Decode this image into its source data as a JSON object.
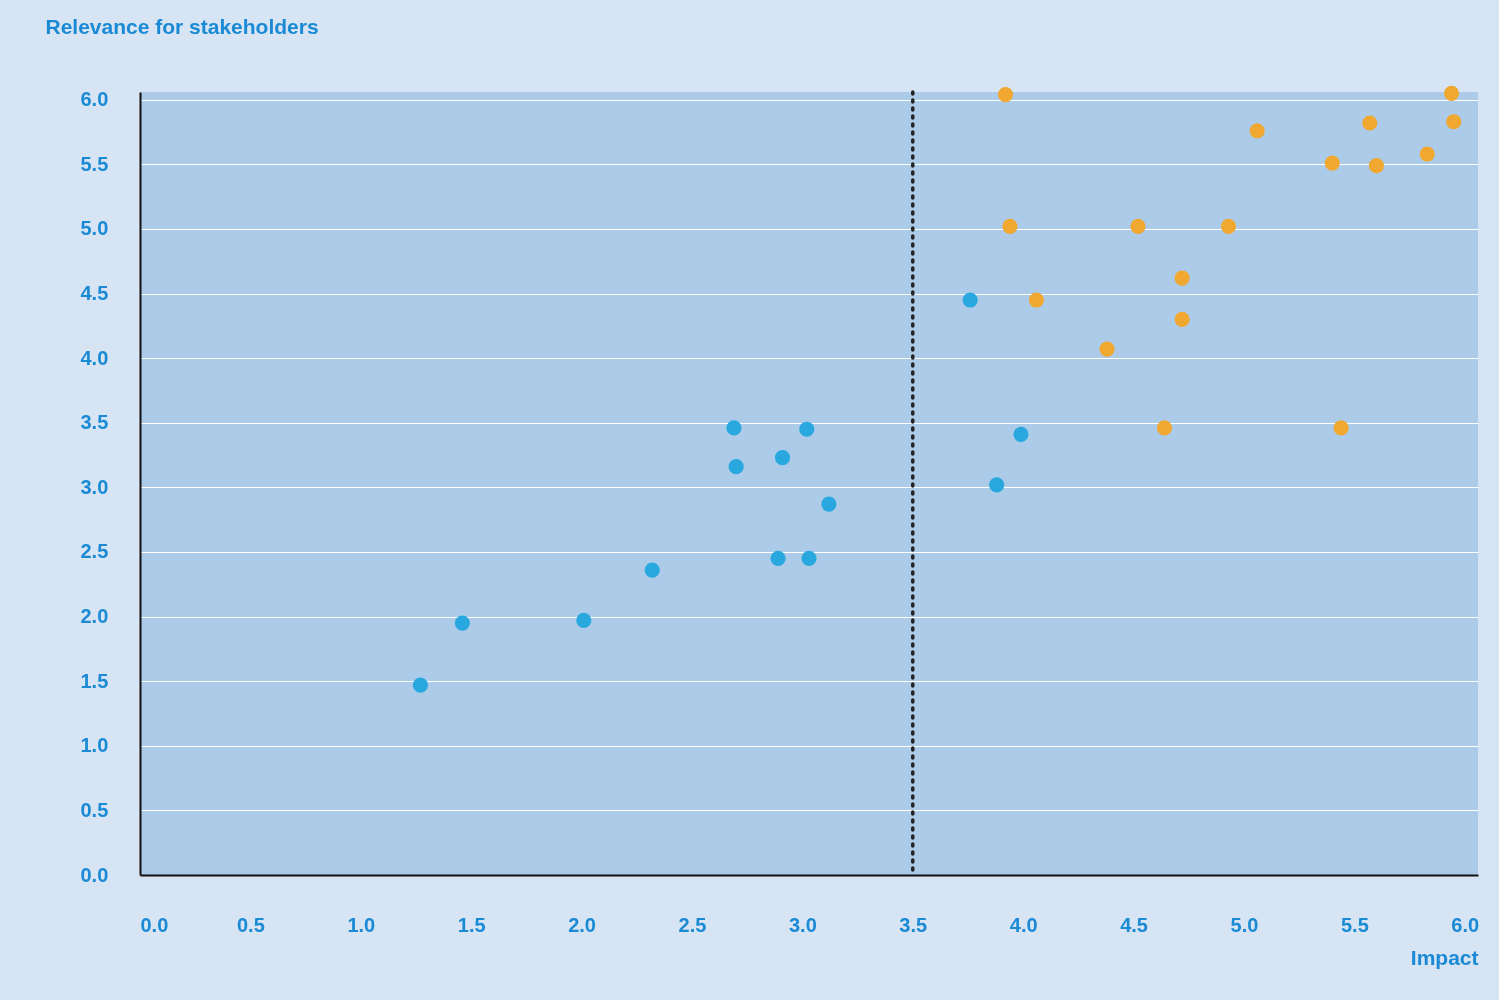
{
  "chart_data": {
    "type": "scatter",
    "ylabel": "Relevance for stakeholders",
    "xlabel": "Impact",
    "xlim": [
      0,
      6.06
    ],
    "ylim": [
      0,
      6.06
    ],
    "xticks": [
      {
        "value": 0,
        "label": "0.0"
      },
      {
        "value": 0.5,
        "label": "0.5"
      },
      {
        "value": 1,
        "label": "1.0"
      },
      {
        "value": 1.5,
        "label": "1.5"
      },
      {
        "value": 2,
        "label": "2.0"
      },
      {
        "value": 2.5,
        "label": "2.5"
      },
      {
        "value": 3,
        "label": "3.0"
      },
      {
        "value": 3.5,
        "label": "3.5"
      },
      {
        "value": 4,
        "label": "4.0"
      },
      {
        "value": 4.5,
        "label": "4.5"
      },
      {
        "value": 5,
        "label": "5.0"
      },
      {
        "value": 5.5,
        "label": "5.5"
      },
      {
        "value": 6,
        "label": "6.0"
      }
    ],
    "yticks": [
      {
        "value": 0,
        "label": "0.0"
      },
      {
        "value": 0.5,
        "label": "0.5"
      },
      {
        "value": 1,
        "label": "1.0"
      },
      {
        "value": 1.5,
        "label": "1.5"
      },
      {
        "value": 2,
        "label": "2.0"
      },
      {
        "value": 2.5,
        "label": "2.5"
      },
      {
        "value": 3,
        "label": "3.0"
      },
      {
        "value": 3.5,
        "label": "3.5"
      },
      {
        "value": 4,
        "label": "4.0"
      },
      {
        "value": 4.5,
        "label": "4.5"
      },
      {
        "value": 5,
        "label": "5.0"
      },
      {
        "value": 5.5,
        "label": "5.5"
      },
      {
        "value": 6,
        "label": "6.0"
      }
    ],
    "grid": "y",
    "marker": "circle",
    "legend": false,
    "ref_lines": [
      {
        "axis": "x",
        "value": 3.5,
        "color": "#222222",
        "line_style": "dotted"
      }
    ],
    "series": [
      {
        "color": "#29a8e0",
        "x": [
          1.27,
          1.46,
          2.01,
          2.32,
          2.69,
          2.7,
          3.02,
          2.91,
          3.12,
          2.89,
          3.03,
          3.76,
          3.99,
          3.88
        ],
        "values": [
          1.47,
          1.95,
          1.97,
          2.36,
          3.46,
          3.16,
          3.45,
          3.23,
          2.87,
          2.45,
          2.45,
          4.45,
          3.41,
          3.02
        ]
      },
      {
        "color": "#f0a830",
        "x": [
          3.92,
          3.94,
          4.06,
          4.38,
          4.52,
          4.72,
          4.72,
          4.64,
          4.93,
          5.06,
          5.4,
          5.57,
          5.6,
          5.83,
          5.94,
          5.95,
          5.44
        ],
        "values": [
          6.04,
          5.02,
          4.45,
          4.07,
          5.02,
          4.62,
          4.3,
          3.46,
          5.02,
          5.76,
          5.51,
          5.82,
          5.49,
          5.58,
          6.05,
          5.83,
          3.46
        ]
      }
    ]
  }
}
